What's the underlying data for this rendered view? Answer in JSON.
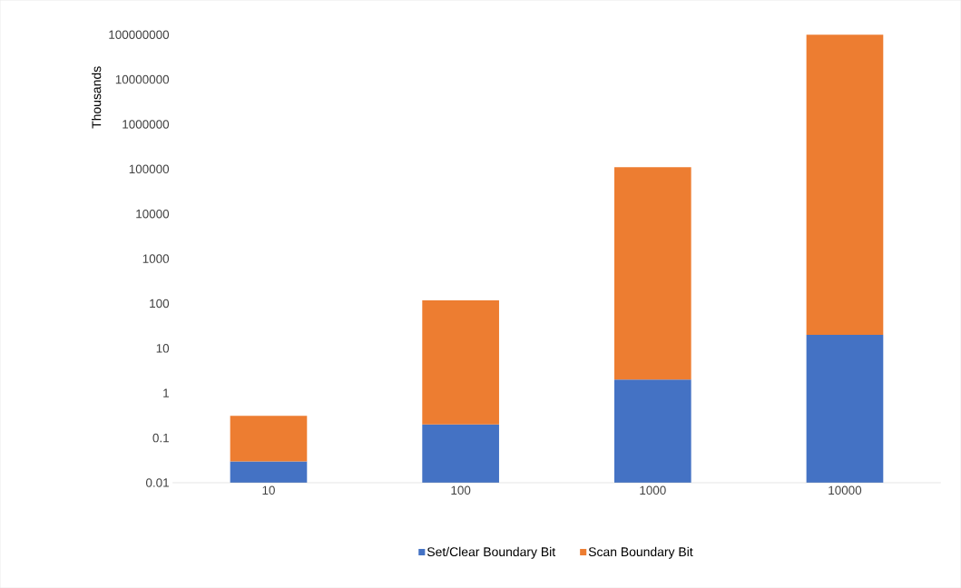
{
  "chart_data": {
    "type": "bar",
    "stacked": true,
    "log": "y",
    "ylabel": "Thousands",
    "categories": [
      "10",
      "100",
      "1000",
      "10000"
    ],
    "series": [
      {
        "name": "Set/Clear Boundary Bit",
        "color": "#4472c4",
        "values": [
          0.03,
          0.2,
          2,
          20
        ]
      },
      {
        "name": "Scan Boundary Bit",
        "color": "#ed7d31",
        "values": [
          0.28,
          117,
          110000,
          99999980
        ]
      }
    ],
    "ylim": [
      0.01,
      100000000
    ],
    "yticks": [
      0.01,
      0.1,
      1,
      10,
      100,
      1000,
      10000,
      100000,
      1000000,
      10000000,
      100000000
    ],
    "grid": false,
    "legend": "bottom"
  }
}
